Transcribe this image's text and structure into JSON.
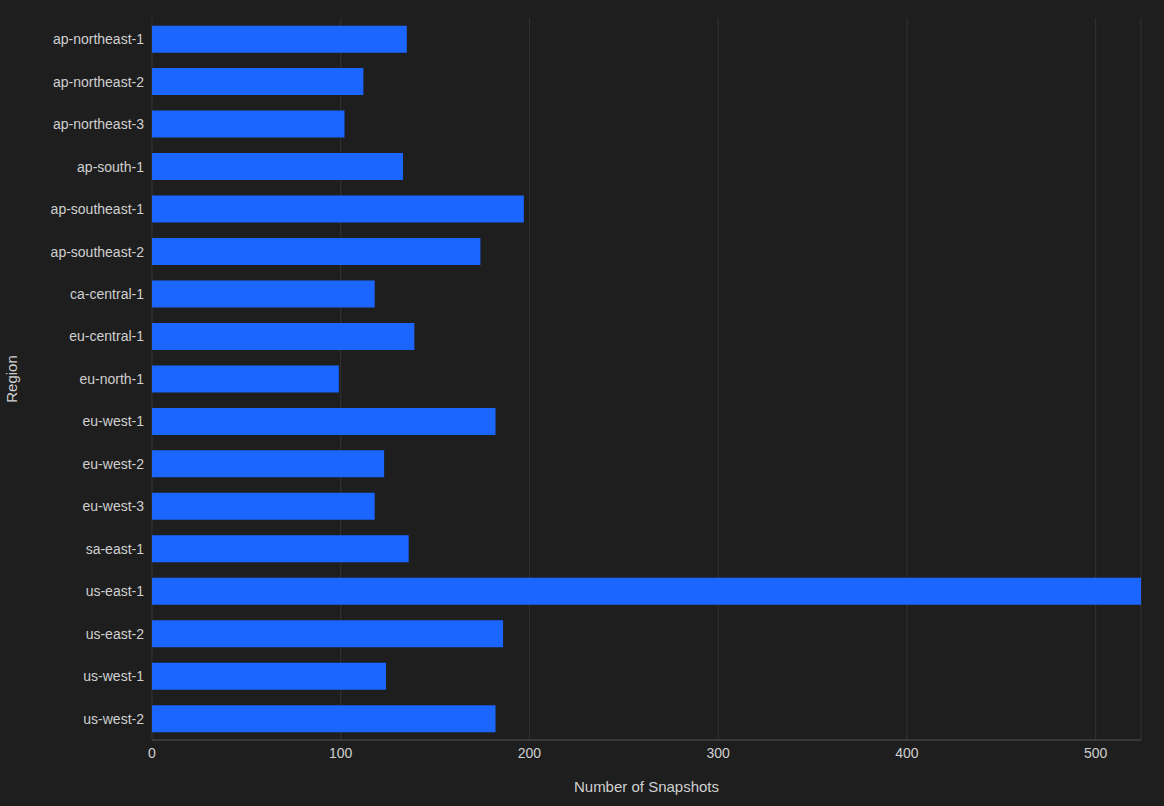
{
  "chart_data": {
    "type": "bar",
    "orientation": "horizontal",
    "x_label": "Number of Snapshots",
    "y_label": "Region",
    "categories": [
      "ap-northeast-1",
      "ap-northeast-2",
      "ap-northeast-3",
      "ap-south-1",
      "ap-southeast-1",
      "ap-southeast-2",
      "ca-central-1",
      "eu-central-1",
      "eu-north-1",
      "eu-west-1",
      "eu-west-2",
      "eu-west-3",
      "sa-east-1",
      "us-east-1",
      "us-east-2",
      "us-west-1",
      "us-west-2"
    ],
    "values": [
      135,
      112,
      102,
      133,
      197,
      174,
      118,
      139,
      99,
      182,
      123,
      118,
      136,
      524,
      186,
      124,
      182
    ],
    "color": "#1a66ff",
    "xlim": [
      0,
      524
    ],
    "xticks": [
      0,
      100,
      200,
      300,
      400,
      500
    ],
    "grid": true
  }
}
